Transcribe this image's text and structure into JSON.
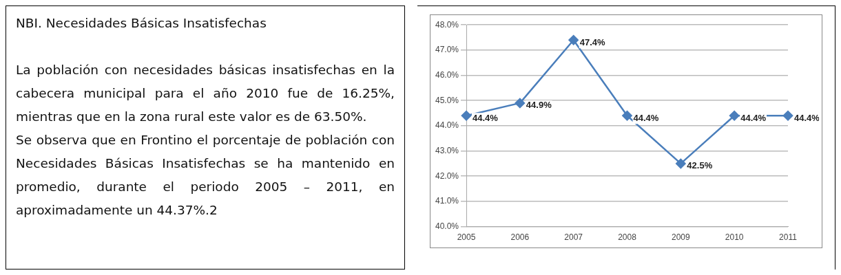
{
  "chart_data": {
    "type": "line",
    "title": "NBI. Necesidades Básicas Insatisfechas",
    "annotations": [
      "La población con necesidades básicas insatisfechas en la cabecera municipal para el año 2010 fue de 16.25%, mientras que en la zona rural este valor es de 63.50%.",
      "Se observa que en Frontino el porcentaje de población con Necesidades Básicas Insatisfechas se ha mantenido en promedio, durante el periodo 2005 – 2011, en aproximadamente un 44.37%.2"
    ],
    "categories": [
      "2005",
      "2006",
      "2007",
      "2008",
      "2009",
      "2010",
      "2011"
    ],
    "series": [
      {
        "color": "#4a7ebb",
        "values": [
          44.4,
          44.9,
          47.4,
          44.4,
          42.5,
          44.4,
          44.4
        ],
        "value_labels": [
          "44.4%",
          "44.9%",
          "47.4%",
          "44.4%",
          "42.5%",
          "44.4%",
          "44.4%"
        ]
      }
    ],
    "ylim": [
      40,
      48
    ],
    "yticks": [
      {
        "value": 40,
        "label": "40.0%"
      },
      {
        "value": 41,
        "label": "41.0%"
      },
      {
        "value": 42,
        "label": "42.0%"
      },
      {
        "value": 43,
        "label": "43.0%"
      },
      {
        "value": 44,
        "label": "44.0%"
      },
      {
        "value": 45,
        "label": "45.0%"
      },
      {
        "value": 46,
        "label": "46.0%"
      },
      {
        "value": 47,
        "label": "47.0%"
      },
      {
        "value": 48,
        "label": "48.0%"
      }
    ],
    "grid": "y",
    "legend": false,
    "marker": "diamond",
    "line_style": "solid"
  }
}
